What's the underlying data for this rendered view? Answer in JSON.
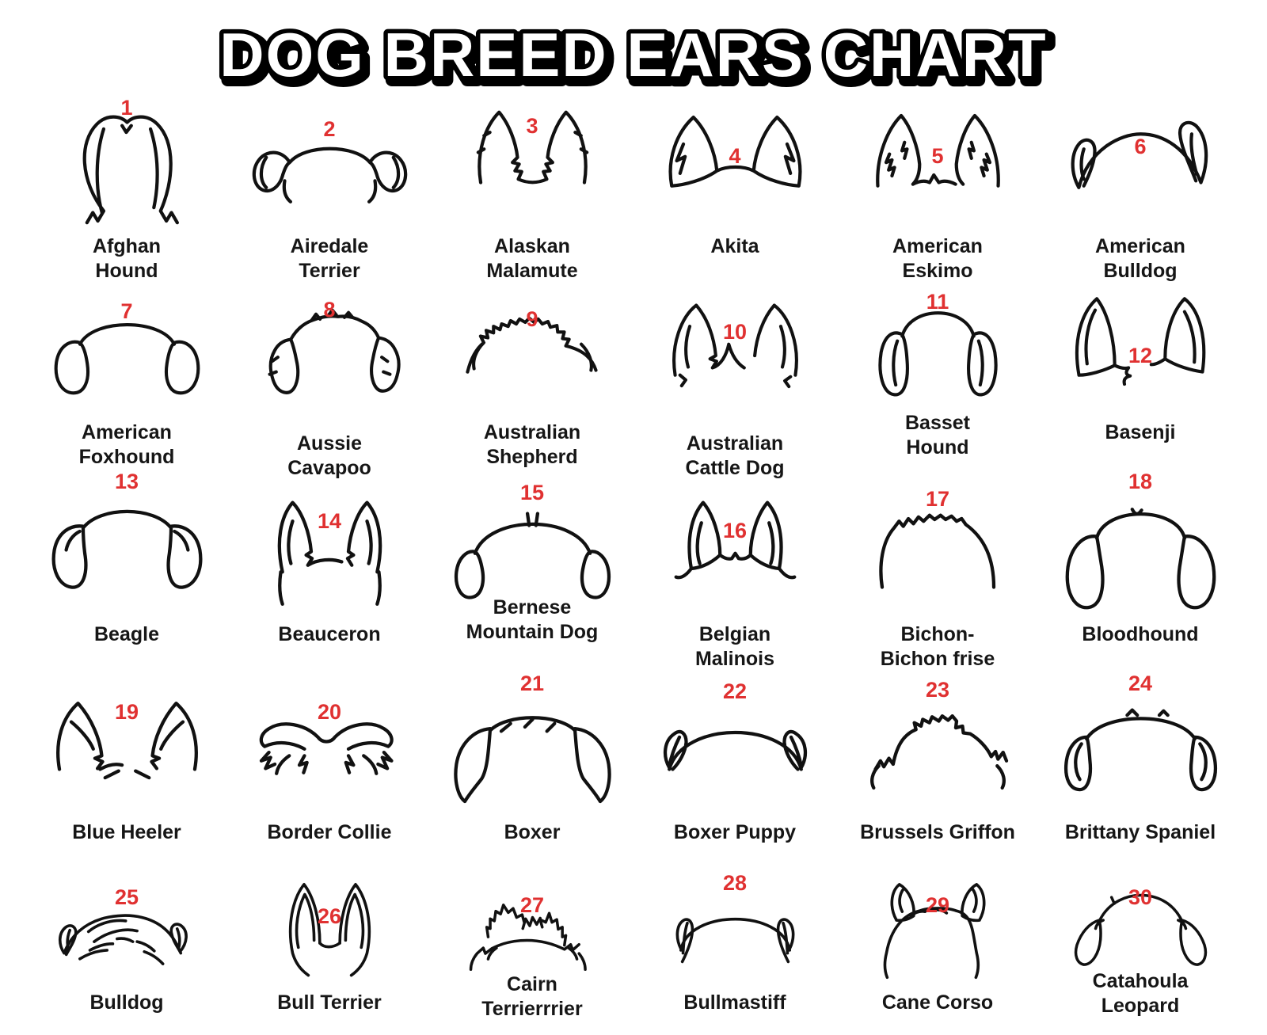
{
  "title": "DOG BREED EARS CHART",
  "colors": {
    "accent": "#e03131",
    "ink": "#111111",
    "background": "#ffffff"
  },
  "breeds": [
    {
      "number": "1",
      "name": "Afghan\nHound",
      "ear": "afghan-hound"
    },
    {
      "number": "2",
      "name": "Airedale\nTerrier",
      "ear": "airedale-terrier"
    },
    {
      "number": "3",
      "name": "Alaskan\nMalamute",
      "ear": "alaskan-malamute"
    },
    {
      "number": "4",
      "name": "Akita",
      "ear": "akita"
    },
    {
      "number": "5",
      "name": "American\nEskimo",
      "ear": "american-eskimo"
    },
    {
      "number": "6",
      "name": "American\nBulldog",
      "ear": "american-bulldog"
    },
    {
      "number": "7",
      "name": "American\nFoxhound",
      "ear": "american-foxhound"
    },
    {
      "number": "8",
      "name": "Aussie\nCavapoo",
      "ear": "aussie-cavapoo"
    },
    {
      "number": "9",
      "name": "Australian\nShepherd",
      "ear": "australian-shepherd"
    },
    {
      "number": "10",
      "name": "Australian\nCattle Dog",
      "ear": "australian-cattle-dog"
    },
    {
      "number": "11",
      "name": "Basset\nHound",
      "ear": "basset-hound"
    },
    {
      "number": "12",
      "name": "Basenji",
      "ear": "basenji"
    },
    {
      "number": "13",
      "name": "Beagle",
      "ear": "beagle"
    },
    {
      "number": "14",
      "name": "Beauceron",
      "ear": "beauceron"
    },
    {
      "number": "15",
      "name": "Bernese\nMountain Dog",
      "ear": "bernese-mountain-dog"
    },
    {
      "number": "16",
      "name": "Belgian\nMalinois",
      "ear": "belgian-malinois"
    },
    {
      "number": "17",
      "name": "Bichon-\nBichon frise",
      "ear": "bichon-frise"
    },
    {
      "number": "18",
      "name": "Bloodhound",
      "ear": "bloodhound"
    },
    {
      "number": "19",
      "name": "Blue Heeler",
      "ear": "blue-heeler"
    },
    {
      "number": "20",
      "name": "Border Collie",
      "ear": "border-collie"
    },
    {
      "number": "21",
      "name": "Boxer",
      "ear": "boxer"
    },
    {
      "number": "22",
      "name": "Boxer Puppy",
      "ear": "boxer-puppy"
    },
    {
      "number": "23",
      "name": "Brussels Griffon",
      "ear": "brussels-griffon"
    },
    {
      "number": "24",
      "name": "Brittany Spaniel",
      "ear": "brittany-spaniel"
    },
    {
      "number": "25",
      "name": "Bulldog",
      "ear": "bulldog"
    },
    {
      "number": "26",
      "name": "Bull Terrier",
      "ear": "bull-terrier"
    },
    {
      "number": "27",
      "name": "Cairn\nTerrierrrier",
      "ear": "cairn-terrier"
    },
    {
      "number": "28",
      "name": "Bullmastiff",
      "ear": "bullmastiff"
    },
    {
      "number": "29",
      "name": "Cane Corso",
      "ear": "cane-corso"
    },
    {
      "number": "30",
      "name": "Catahoula\nLeopard",
      "ear": "catahoula-leopard"
    }
  ]
}
